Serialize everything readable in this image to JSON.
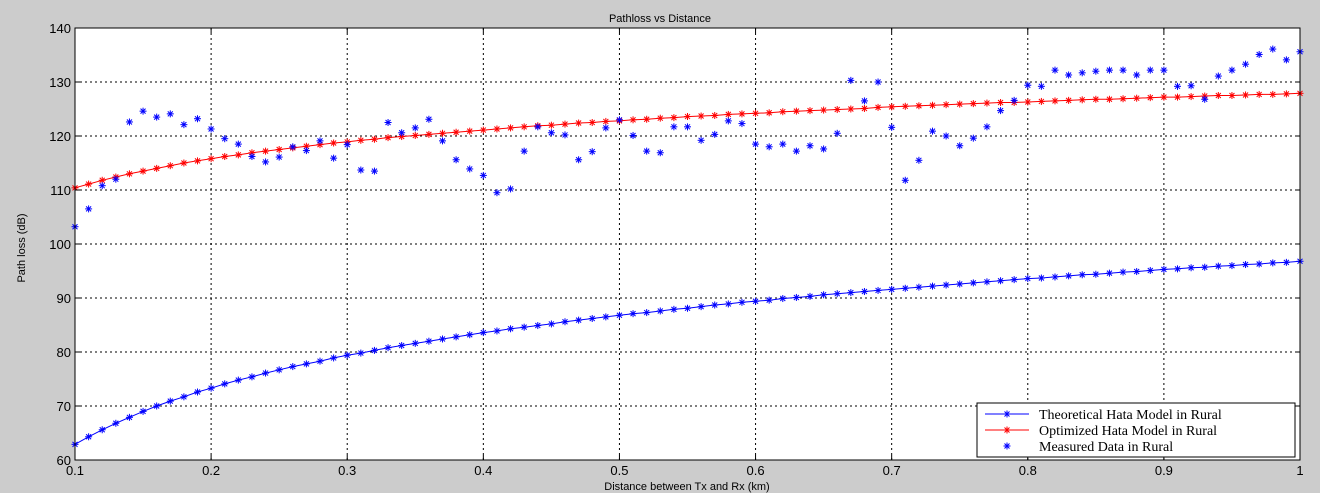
{
  "chart_data": {
    "type": "line",
    "title": "Pathloss vs Distance",
    "xlabel": "Distance between Tx and Rx (km)",
    "ylabel": "Path loss (dB)",
    "xlim": [
      0.1,
      1.0
    ],
    "ylim": [
      60,
      140
    ],
    "grid": true,
    "legend_position": "bottom-right",
    "x_ticks": [
      "0.1",
      "0.2",
      "0.3",
      "0.4",
      "0.5",
      "0.6",
      "0.7",
      "0.8",
      "0.9",
      "1"
    ],
    "y_ticks": [
      "60",
      "70",
      "80",
      "90",
      "100",
      "110",
      "120",
      "130",
      "140"
    ],
    "x": [
      0.1,
      0.11,
      0.12,
      0.13,
      0.14,
      0.15,
      0.16,
      0.17,
      0.18,
      0.19,
      0.2,
      0.21,
      0.22,
      0.23,
      0.24,
      0.25,
      0.26,
      0.27,
      0.28,
      0.29,
      0.3,
      0.31,
      0.32,
      0.33,
      0.34,
      0.35,
      0.36,
      0.37,
      0.38,
      0.39,
      0.4,
      0.41,
      0.42,
      0.43,
      0.44,
      0.45,
      0.46,
      0.47,
      0.48,
      0.49,
      0.5,
      0.51,
      0.52,
      0.53,
      0.54,
      0.55,
      0.56,
      0.57,
      0.58,
      0.59,
      0.6,
      0.61,
      0.62,
      0.63,
      0.64,
      0.65,
      0.66,
      0.67,
      0.68,
      0.69,
      0.7,
      0.71,
      0.72,
      0.73,
      0.74,
      0.75,
      0.76,
      0.77,
      0.78,
      0.79,
      0.8,
      0.81,
      0.82,
      0.83,
      0.84,
      0.85,
      0.86,
      0.87,
      0.88,
      0.89,
      0.9,
      0.91,
      0.92,
      0.93,
      0.94,
      0.95,
      0.96,
      0.97,
      0.98,
      0.99,
      1.0
    ],
    "series": [
      {
        "name": "Theoretical Hata Model in Rural",
        "color": "#0000ff",
        "style": "line-marker",
        "marker": "star",
        "values": [
          62.9,
          64.3,
          65.6,
          66.8,
          67.9,
          69.0,
          70.0,
          70.9,
          71.7,
          72.6,
          73.3,
          74.1,
          74.8,
          75.4,
          76.1,
          76.7,
          77.3,
          77.8,
          78.3,
          78.9,
          79.4,
          79.8,
          80.3,
          80.8,
          81.2,
          81.6,
          82.0,
          82.4,
          82.8,
          83.2,
          83.6,
          83.9,
          84.3,
          84.6,
          84.9,
          85.2,
          85.6,
          85.9,
          86.2,
          86.5,
          86.8,
          87.1,
          87.3,
          87.6,
          87.9,
          88.1,
          88.4,
          88.7,
          88.9,
          89.2,
          89.4,
          89.6,
          89.9,
          90.1,
          90.3,
          90.6,
          90.8,
          91.0,
          91.2,
          91.4,
          91.6,
          91.8,
          92.0,
          92.2,
          92.4,
          92.6,
          92.8,
          93.0,
          93.2,
          93.4,
          93.6,
          93.7,
          93.9,
          94.1,
          94.3,
          94.4,
          94.6,
          94.8,
          94.9,
          95.1,
          95.3,
          95.4,
          95.6,
          95.7,
          95.9,
          96.0,
          96.2,
          96.3,
          96.5,
          96.6,
          96.8
        ]
      },
      {
        "name": "Optimized Hata Model  in Rural",
        "color": "#ff0000",
        "style": "line-marker",
        "marker": "star",
        "values": [
          110.4,
          111.1,
          111.8,
          112.4,
          113.0,
          113.5,
          114.0,
          114.5,
          115.0,
          115.4,
          115.8,
          116.2,
          116.5,
          116.9,
          117.2,
          117.5,
          117.8,
          118.1,
          118.4,
          118.7,
          118.9,
          119.2,
          119.4,
          119.7,
          119.9,
          120.1,
          120.3,
          120.5,
          120.7,
          120.9,
          121.1,
          121.3,
          121.5,
          121.7,
          121.9,
          122.0,
          122.2,
          122.4,
          122.5,
          122.7,
          122.8,
          123.0,
          123.1,
          123.3,
          123.4,
          123.6,
          123.7,
          123.8,
          124.0,
          124.1,
          124.2,
          124.3,
          124.5,
          124.6,
          124.7,
          124.8,
          124.9,
          125.0,
          125.1,
          125.3,
          125.4,
          125.5,
          125.6,
          125.7,
          125.8,
          125.9,
          126.0,
          126.1,
          126.2,
          126.2,
          126.3,
          126.4,
          126.5,
          126.6,
          126.7,
          126.8,
          126.8,
          126.9,
          127.0,
          127.1,
          127.2,
          127.2,
          127.3,
          127.4,
          127.5,
          127.5,
          127.6,
          127.7,
          127.7,
          127.8,
          127.9
        ]
      },
      {
        "name": "Measured Data in Rural",
        "color": "#0000ff",
        "style": "marker",
        "marker": "star",
        "values": [
          103.2,
          106.5,
          110.8,
          112.0,
          122.6,
          124.6,
          123.5,
          124.1,
          122.1,
          123.2,
          121.3,
          119.5,
          118.5,
          116.2,
          115.2,
          116.1,
          118.0,
          117.3,
          119.1,
          115.9,
          118.4,
          113.7,
          113.5,
          122.5,
          120.6,
          121.5,
          123.1,
          119.1,
          115.6,
          113.9,
          112.7,
          109.5,
          110.2,
          117.2,
          121.7,
          120.6,
          120.2,
          115.6,
          117.1,
          121.5,
          123.0,
          120.1,
          117.2,
          116.9,
          121.7,
          121.7,
          119.2,
          120.3,
          122.8,
          122.3,
          118.5,
          118.0,
          118.5,
          117.2,
          118.2,
          117.6,
          120.5,
          130.3,
          126.5,
          130.0,
          121.6,
          111.8,
          115.5,
          120.9,
          120.0,
          118.2,
          119.6,
          121.7,
          124.7,
          126.6,
          129.4,
          129.2,
          132.2,
          131.3,
          131.7,
          132.0,
          132.2,
          132.2,
          131.3,
          132.2,
          132.2,
          129.2,
          129.3,
          126.8,
          131.1,
          132.2,
          133.3,
          135.1,
          136.1,
          134.1,
          135.6
        ]
      }
    ]
  }
}
